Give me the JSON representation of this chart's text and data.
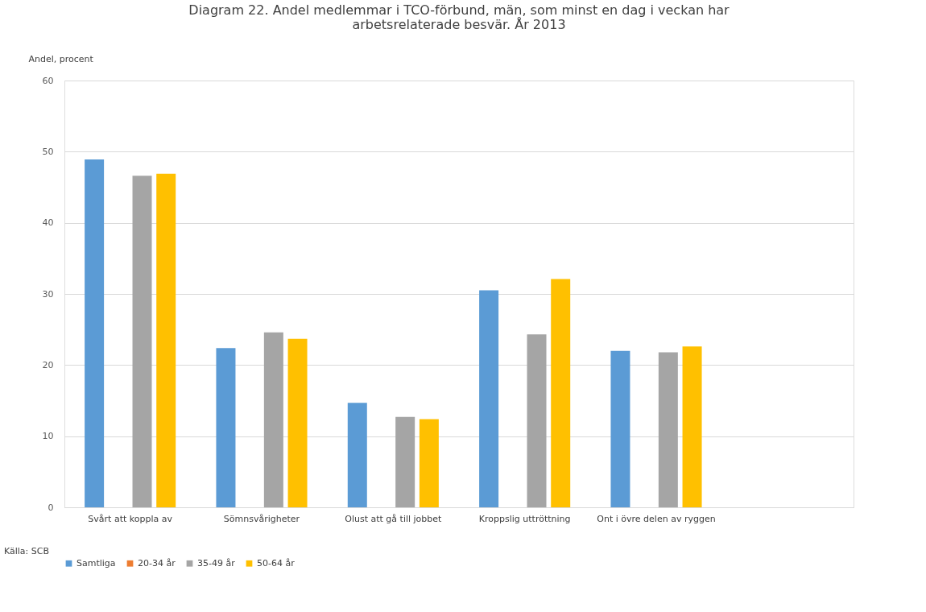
{
  "chart_data": {
    "type": "bar",
    "title": "Diagram 22. Andel medlemmar i TCO-förbund, män, som minst en dag i veckan har arbetsrelaterade besvär. År 2013",
    "ylabel": "Andel, procent",
    "annotations": [
      "Källa: SCB"
    ],
    "categories": [
      "Svårt att koppla av",
      "Sömnsvårigheter",
      "Olust att gå till jobbet",
      "Kroppslig uttröttning",
      "Ont i övre delen av ryggen",
      null
    ],
    "series": [
      {
        "name": "Samtliga",
        "color": "#5b9bd5",
        "values": [
          48.9,
          22.4,
          14.7,
          30.5,
          22.0,
          null
        ]
      },
      {
        "name": "20-34 år",
        "color": "#ed7d31",
        "values": [
          null,
          null,
          null,
          null,
          null,
          null
        ]
      },
      {
        "name": "35-49 år",
        "color": "#a5a5a5",
        "values": [
          46.6,
          24.6,
          12.7,
          24.3,
          21.8,
          null
        ]
      },
      {
        "name": "50-64 år",
        "color": "#ffc000",
        "values": [
          46.9,
          23.7,
          12.4,
          32.1,
          22.6,
          null
        ]
      }
    ],
    "ylim": [
      0,
      60
    ],
    "yticks": [
      0,
      10,
      20,
      30,
      40,
      50,
      60
    ],
    "grid": "y",
    "legend": "bottom"
  }
}
